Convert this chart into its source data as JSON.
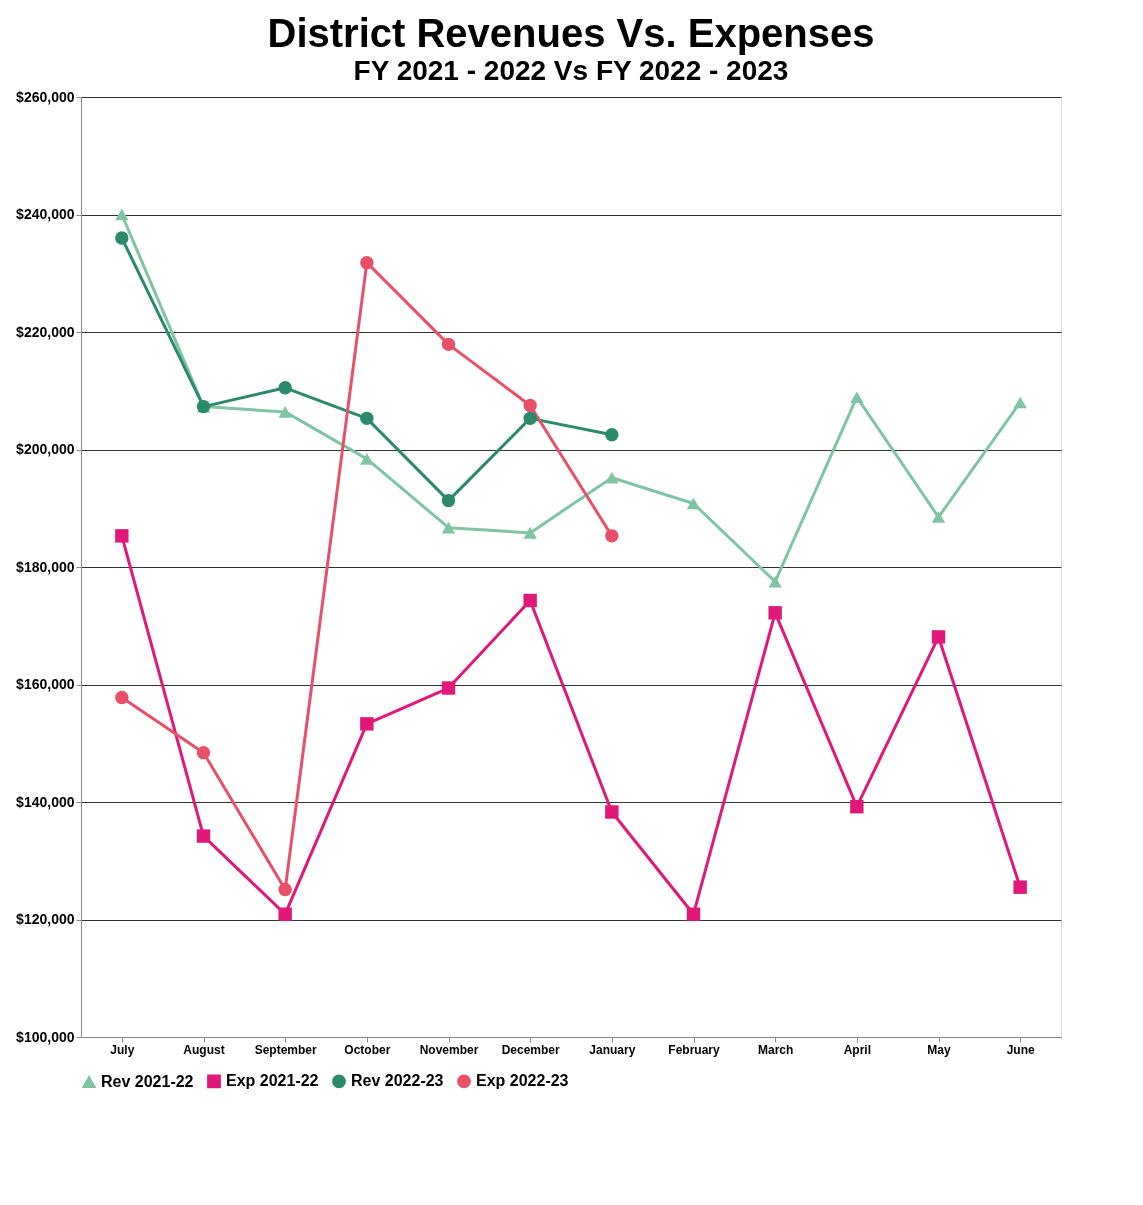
{
  "chart_data": {
    "type": "line",
    "title": "District Revenues Vs. Expenses",
    "subtitle": "FY 2021 - 2022  Vs  FY 2022 - 2023",
    "categories": [
      "July",
      "August",
      "September",
      "October",
      "November",
      "December",
      "January",
      "February",
      "March",
      "April",
      "May",
      "June"
    ],
    "series": [
      {
        "name": "Rev 2021-22",
        "color": "#7fc4a4",
        "marker": "triangle",
        "values": [
          240000,
          207300,
          206400,
          198400,
          186700,
          185800,
          195200,
          190800,
          177500,
          208900,
          188500,
          208000
        ]
      },
      {
        "name": "Exp 2021-22",
        "color": "#e0187a",
        "marker": "square",
        "values": [
          185300,
          134200,
          120900,
          153300,
          159400,
          174300,
          138300,
          120900,
          172200,
          139200,
          168100,
          125500
        ]
      },
      {
        "name": "Rev 2022-23",
        "color": "#2a8a6a",
        "marker": "circle",
        "values": [
          236000,
          207300,
          210500,
          205300,
          191300,
          205300,
          202500,
          null,
          null,
          null,
          null,
          null
        ]
      },
      {
        "name": "Exp 2022-23",
        "color": "#e8506a",
        "marker": "circle",
        "values": [
          157800,
          148400,
          125100,
          231800,
          217900,
          207500,
          185300,
          null,
          null,
          null,
          null,
          null
        ]
      }
    ],
    "ylim": [
      100000,
      260000
    ],
    "yticks": [
      {
        "value": 100000,
        "label": "$100,000"
      },
      {
        "value": 120000,
        "label": "$120,000"
      },
      {
        "value": 140000,
        "label": "$140,000"
      },
      {
        "value": 160000,
        "label": "$160,000"
      },
      {
        "value": 180000,
        "label": "$180,000"
      },
      {
        "value": 200000,
        "label": "$200,000"
      },
      {
        "value": 220000,
        "label": "$220,000"
      },
      {
        "value": 240000,
        "label": "$240,000"
      },
      {
        "value": 260000,
        "label": "$260,000"
      }
    ],
    "grid": "y",
    "legend": "bottom"
  }
}
